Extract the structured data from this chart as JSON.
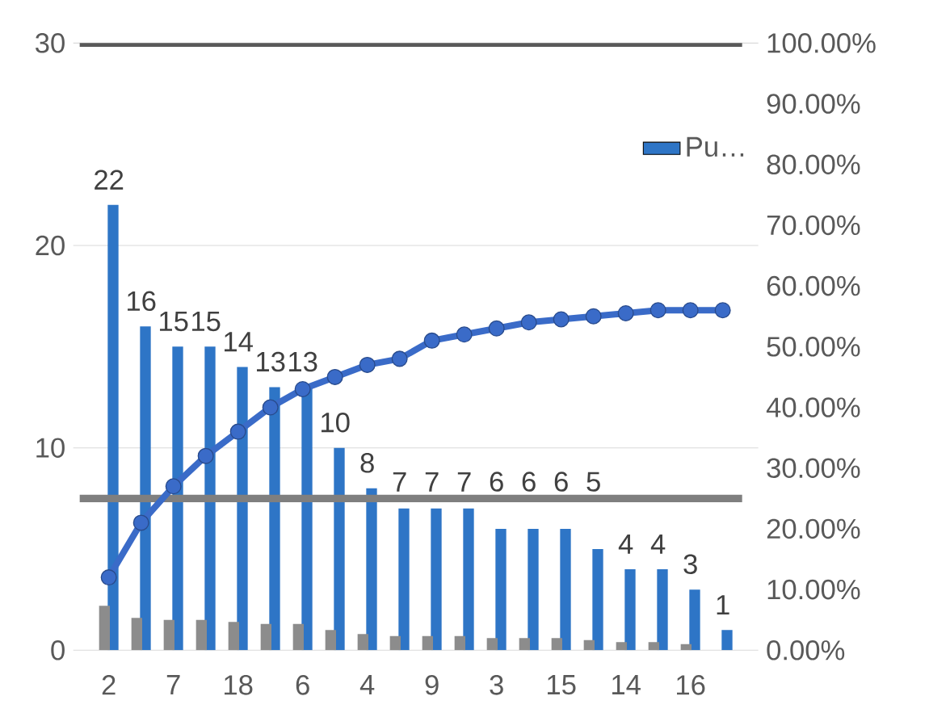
{
  "chart_data": {
    "type": "bar",
    "categories": [
      "2",
      null,
      "7",
      null,
      "18",
      null,
      "6",
      null,
      "4",
      null,
      "9",
      null,
      "3",
      null,
      "15",
      null,
      "14",
      null,
      "16",
      null
    ],
    "series": [
      {
        "name": "Pu…",
        "color": "#2e75c6",
        "values": [
          22,
          16,
          15,
          15,
          14,
          13,
          13,
          10,
          8,
          7,
          7,
          7,
          6,
          6,
          6,
          5,
          4,
          4,
          3,
          1
        ],
        "value_labels": [
          "22",
          "16",
          "15",
          "15",
          "14",
          "13",
          "13",
          "10",
          "8",
          "7",
          "7",
          "7",
          "6",
          "6",
          "6",
          "5",
          "4",
          "4",
          "3",
          "1"
        ]
      },
      {
        "color": "#8c8c8c",
        "values": [
          2.2,
          1.6,
          1.5,
          1.5,
          1.4,
          1.3,
          1.3,
          1.0,
          0.8,
          0.7,
          0.7,
          0.7,
          0.6,
          0.6,
          0.6,
          0.5,
          0.4,
          0.4,
          0.3,
          null
        ]
      },
      {
        "type": "line",
        "axis": "y2",
        "color": "#3a6bc8",
        "marker": "circle",
        "values": [
          12,
          21,
          27,
          32,
          36,
          40,
          43,
          45,
          47,
          48,
          51,
          52,
          53,
          54,
          54.5,
          55,
          55.5,
          56,
          56,
          56
        ]
      }
    ],
    "ylim": [
      0,
      30
    ],
    "yticks": [
      0,
      10,
      20,
      30
    ],
    "y2lim": [
      0,
      100
    ],
    "y2ticks": [
      {
        "value": 0,
        "label": "0.00%"
      },
      {
        "value": 10,
        "label": "10.00%"
      },
      {
        "value": 20,
        "label": "20.00%"
      },
      {
        "value": 30,
        "label": "30.00%"
      },
      {
        "value": 40,
        "label": "40.00%"
      },
      {
        "value": 50,
        "label": "50.00%"
      },
      {
        "value": 60,
        "label": "60.00%"
      },
      {
        "value": 70,
        "label": "70.00%"
      },
      {
        "value": 80,
        "label": "80.00%"
      },
      {
        "value": 90,
        "label": "90.00%"
      },
      {
        "value": 100,
        "label": "100.00%"
      }
    ],
    "ref_lines": [
      {
        "axis": "y2",
        "value": 100,
        "color": "#595959"
      },
      {
        "axis": "y2",
        "value": 25,
        "color": "#7f7f7f"
      }
    ],
    "grid": "y",
    "legend": "top right"
  }
}
